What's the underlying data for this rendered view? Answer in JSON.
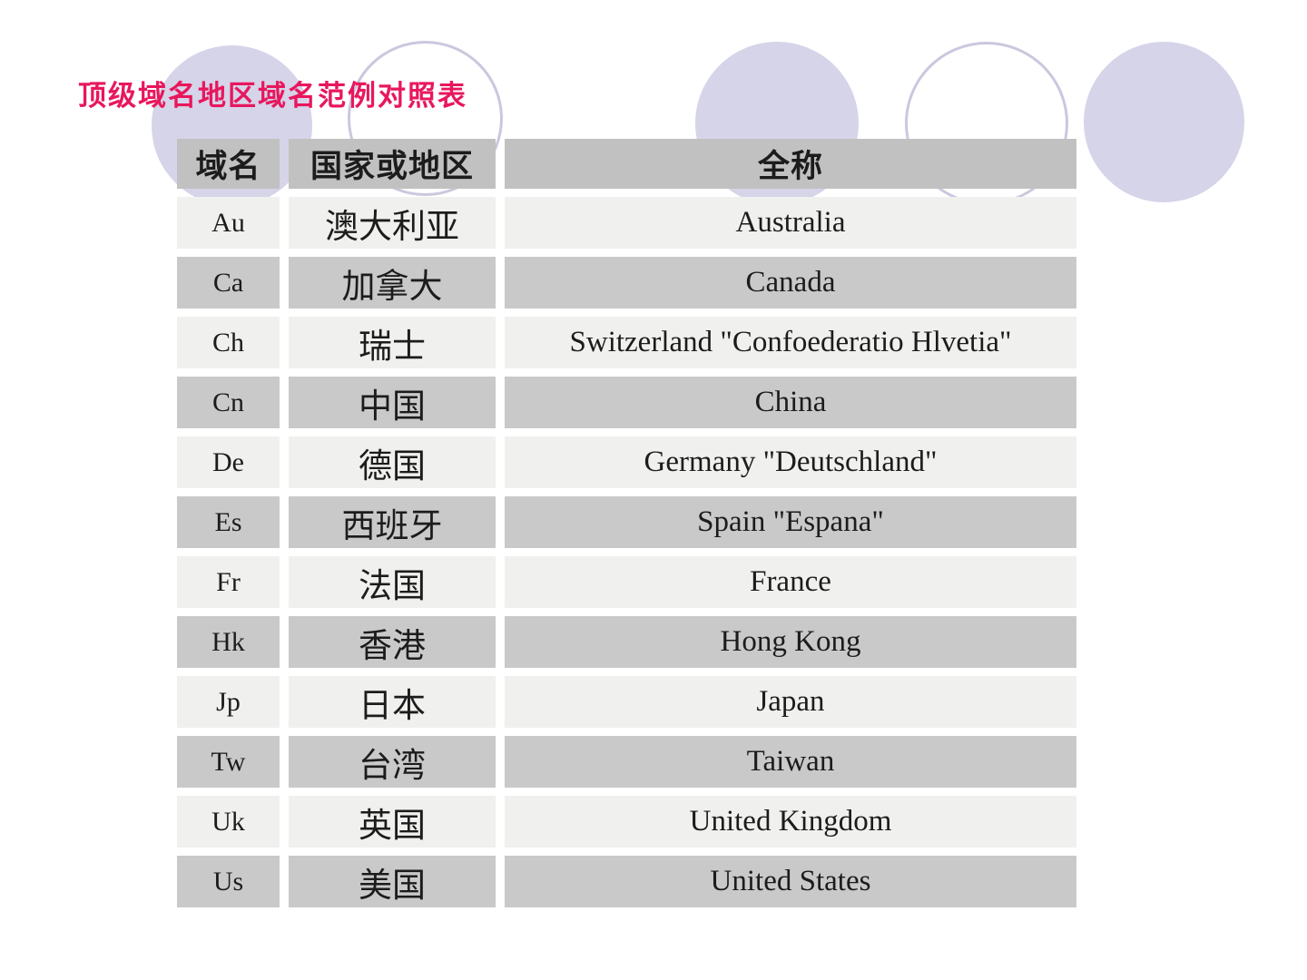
{
  "slide": {
    "title": "顶级域名地区域名范例对照表"
  },
  "table": {
    "headers": {
      "code": "域名",
      "region": "国家或地区",
      "full": "全称"
    },
    "rows": [
      {
        "code": "Au",
        "region": "澳大利亚",
        "full": "Australia"
      },
      {
        "code": "Ca",
        "region": "加拿大",
        "full": "Canada"
      },
      {
        "code": "Ch",
        "region": "瑞士",
        "full": "Switzerland \"Confoederatio Hlvetia\""
      },
      {
        "code": "Cn",
        "region": "中国",
        "full": "China"
      },
      {
        "code": "De",
        "region": "德国",
        "full": "Germany \"Deutschland\""
      },
      {
        "code": "Es",
        "region": "西班牙",
        "full": "Spain \"Espana\""
      },
      {
        "code": "Fr",
        "region": "法国",
        "full": "France"
      },
      {
        "code": "Hk",
        "region": "香港",
        "full": "Hong Kong"
      },
      {
        "code": "Jp",
        "region": "日本",
        "full": "Japan"
      },
      {
        "code": "Tw",
        "region": "台湾",
        "full": "Taiwan"
      },
      {
        "code": "Uk",
        "region": "英国",
        "full": "United Kingdom"
      },
      {
        "code": "Us",
        "region": "美国",
        "full": "United States"
      }
    ]
  },
  "colors": {
    "title": "#e8175d",
    "header_bg": "#c1c1c1",
    "row_light_bg": "#f0f0ee",
    "row_dark_bg": "#c9c9c9",
    "circle_fill": "#d5d4e9",
    "circle_outline": "#c9c8de",
    "text": "#1c1c1c"
  },
  "decor": {
    "circles": [
      {
        "style": "filled"
      },
      {
        "style": "outline"
      },
      {
        "style": "filled"
      },
      {
        "style": "outline"
      },
      {
        "style": "filled"
      }
    ]
  }
}
